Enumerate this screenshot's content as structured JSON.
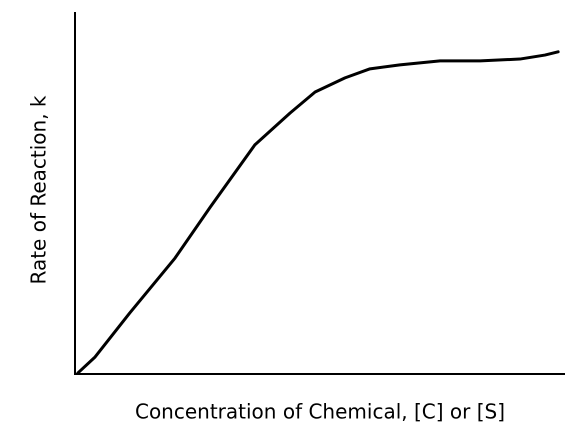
{
  "chart_data": {
    "type": "line",
    "x_label": "Concentration of  Chemical, [C] or [S]",
    "y_label": "Rate of Reaction, k",
    "x": [
      0.6,
      4.1,
      11.2,
      20.4,
      27.6,
      36.7,
      43.9,
      49.0,
      55.1,
      60.2,
      66.3,
      74.5,
      82.7,
      90.8,
      95.9,
      98.6
    ],
    "values": [
      0.3,
      4.7,
      16.9,
      32.0,
      46.1,
      63.3,
      72.1,
      77.9,
      81.8,
      84.3,
      85.4,
      86.5,
      86.5,
      87.0,
      88.1,
      89.0
    ],
    "color": "#000000",
    "xlim": [
      0,
      100
    ],
    "ylim": [
      0,
      100
    ]
  }
}
